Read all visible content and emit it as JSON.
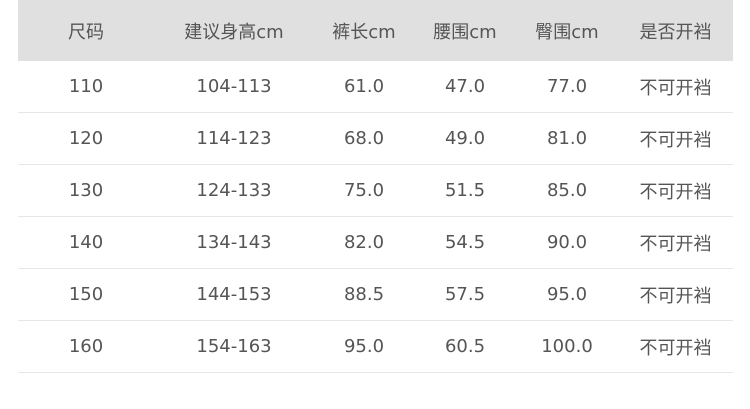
{
  "headers": [
    "尺码",
    "建议身高cm",
    "裤长cm",
    "腰围cm",
    "臀围cm",
    "是否开裆"
  ],
  "rows": [
    [
      "110",
      "104-113",
      "61.0",
      "47.0",
      "77.0",
      "不可开裆"
    ],
    [
      "120",
      "114-123",
      "68.0",
      "49.0",
      "81.0",
      "不可开裆"
    ],
    [
      "130",
      "124-133",
      "75.0",
      "51.5",
      "85.0",
      "不可开裆"
    ],
    [
      "140",
      "134-143",
      "82.0",
      "54.5",
      "90.0",
      "不可开裆"
    ],
    [
      "150",
      "144-153",
      "88.5",
      "57.5",
      "95.0",
      "不可开裆"
    ],
    [
      "160",
      "154-163",
      "95.0",
      "60.5",
      "100.0",
      "不可开裆"
    ]
  ]
}
